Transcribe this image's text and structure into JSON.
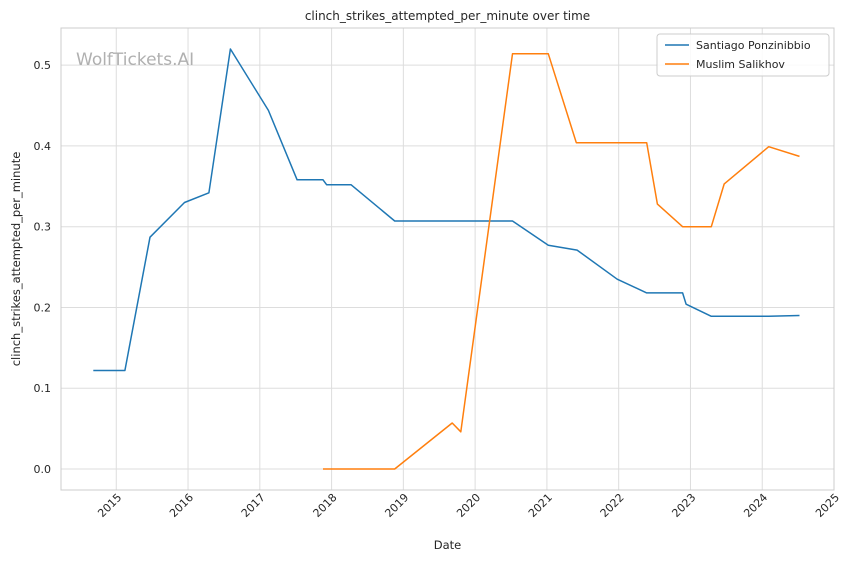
{
  "chart_data": {
    "type": "line",
    "title": "clinch_strikes_attempted_per_minute over time",
    "xlabel": "Date",
    "ylabel": "clinch_strikes_attempted_per_minute",
    "watermark": "WolfTickets.AI",
    "xlim": [
      2014.23,
      2025.0
    ],
    "ylim": [
      -0.026,
      0.546
    ],
    "x_ticks": [
      2015,
      2016,
      2017,
      2018,
      2019,
      2020,
      2021,
      2022,
      2023,
      2024,
      2025
    ],
    "x_tick_labels": [
      "2015",
      "2016",
      "2017",
      "2018",
      "2019",
      "2020",
      "2021",
      "2022",
      "2023",
      "2024",
      "2025"
    ],
    "y_ticks": [
      0.0,
      0.1,
      0.2,
      0.3,
      0.4,
      0.5
    ],
    "y_tick_labels": [
      "0.0",
      "0.1",
      "0.2",
      "0.3",
      "0.4",
      "0.5"
    ],
    "grid": true,
    "legend_position": "top-right",
    "series": [
      {
        "name": "Santiago Ponzinibbio",
        "color": "#1f77b4",
        "x": [
          2014.68,
          2015.12,
          2015.47,
          2015.95,
          2016.29,
          2016.59,
          2017.12,
          2017.52,
          2017.88,
          2017.93,
          2018.27,
          2018.88,
          2020.52,
          2021.02,
          2021.42,
          2021.98,
          2022.39,
          2022.89,
          2022.94,
          2023.29,
          2024.09,
          2024.52
        ],
        "y": [
          0.122,
          0.122,
          0.287,
          0.33,
          0.342,
          0.52,
          0.444,
          0.358,
          0.358,
          0.352,
          0.352,
          0.307,
          0.307,
          0.277,
          0.271,
          0.235,
          0.218,
          0.218,
          0.204,
          0.189,
          0.189,
          0.19
        ]
      },
      {
        "name": "Muslim Salikhov",
        "color": "#ff7f0e",
        "x": [
          2017.88,
          2018.88,
          2019.68,
          2019.8,
          2020.52,
          2021.02,
          2021.41,
          2022.39,
          2022.54,
          2022.89,
          2023.29,
          2023.47,
          2024.09,
          2024.52
        ],
        "y": [
          0.0,
          0.0,
          0.057,
          0.046,
          0.514,
          0.514,
          0.404,
          0.404,
          0.328,
          0.3,
          0.3,
          0.353,
          0.399,
          0.387
        ]
      }
    ]
  }
}
